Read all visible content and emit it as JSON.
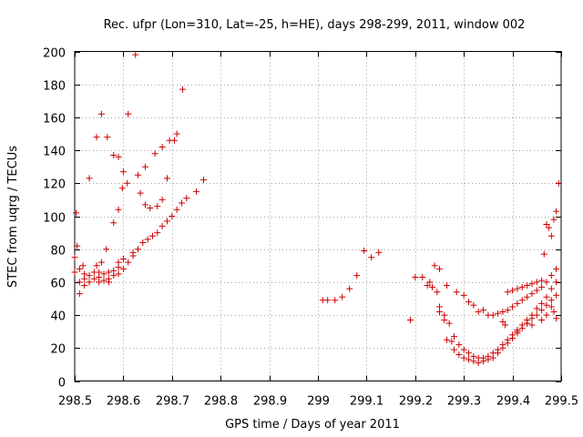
{
  "chart_data": {
    "type": "scatter",
    "title": "Rec. ufpr (Lon=310, Lat=-25, h=HE), days 298-299, 2011, window 002",
    "xlabel": "GPS time / Days of year 2011",
    "ylabel": "STEC from uqrg / TECUs",
    "xlim": [
      298.5,
      299.5
    ],
    "ylim": [
      0,
      200
    ],
    "xticks": [
      298.5,
      298.6,
      298.7,
      298.8,
      298.9,
      299,
      299.1,
      299.2,
      299.3,
      299.4,
      299.5
    ],
    "xtick_labels": [
      "298.5",
      "298.6",
      "298.7",
      "298.8",
      "298.9",
      "299",
      "299.1",
      "299.2",
      "299.3",
      "299.4",
      "299.5"
    ],
    "yticks": [
      0,
      20,
      40,
      60,
      80,
      100,
      120,
      140,
      160,
      180,
      200
    ],
    "ytick_labels": [
      "0",
      "20",
      "40",
      "60",
      "80",
      "100",
      "120",
      "140",
      "160",
      "180",
      "200"
    ],
    "grid": true,
    "marker": "plus",
    "color": "#cc0000",
    "series": [
      {
        "name": "STEC",
        "x": [
          298.5,
          298.5,
          298.51,
          298.51,
          298.51,
          298.52,
          298.52,
          298.53,
          298.53,
          298.54,
          298.54,
          298.55,
          298.55,
          298.55,
          298.56,
          298.56,
          298.57,
          298.57,
          298.57,
          298.58,
          298.58,
          298.59,
          298.59,
          298.59,
          298.6,
          298.6,
          298.61,
          298.62,
          298.62,
          298.63,
          298.64,
          298.65,
          298.66,
          298.67,
          298.68,
          298.69,
          298.7,
          298.71,
          298.72,
          298.73,
          298.75,
          298.765,
          298.503,
          298.53,
          298.545,
          298.555,
          298.567,
          298.58,
          298.59,
          298.6,
          298.61,
          298.625,
          298.635,
          298.645,
          298.655,
          298.67,
          298.68,
          298.69,
          298.705,
          298.505,
          298.517,
          298.52,
          298.545,
          298.555,
          298.565,
          298.58,
          298.59,
          298.598,
          298.608,
          298.63,
          298.645,
          298.665,
          298.68,
          298.695,
          298.71,
          298.722,
          299.01,
          299.02,
          299.035,
          299.05,
          299.065,
          299.08,
          299.095,
          299.11,
          299.125,
          299.19,
          299.2,
          299.215,
          299.225,
          299.23,
          299.235,
          299.245,
          299.25,
          299.26,
          299.265,
          299.275,
          299.28,
          299.29,
          299.3,
          299.31,
          299.32,
          299.33,
          299.34,
          299.35,
          299.36,
          299.37,
          299.38,
          299.39,
          299.4,
          299.41,
          299.42,
          299.43,
          299.44,
          299.45,
          299.46,
          299.47,
          299.48,
          299.49,
          299.25,
          299.26,
          299.27,
          299.28,
          299.29,
          299.3,
          299.31,
          299.32,
          299.33,
          299.34,
          299.35,
          299.36,
          299.37,
          299.38,
          299.39,
          299.4,
          299.41,
          299.42,
          299.43,
          299.44,
          299.45,
          299.46,
          299.47,
          299.48,
          299.49,
          299.285,
          299.3,
          299.31,
          299.32,
          299.33,
          299.34,
          299.35,
          299.36,
          299.37,
          299.38,
          299.39,
          299.4,
          299.41,
          299.42,
          299.43,
          299.44,
          299.45,
          299.46,
          299.47,
          299.48,
          299.49,
          299.39,
          299.4,
          299.41,
          299.42,
          299.43,
          299.44,
          299.45,
          299.46,
          299.465,
          299.47,
          299.475,
          299.48,
          299.485,
          299.49,
          299.495,
          299.24,
          299.25,
          299.265,
          299.38,
          299.385,
          299.41,
          299.43,
          299.44,
          299.46,
          299.47,
          299.48,
          299.485,
          299.49
        ],
        "y": [
          75,
          66,
          60,
          68,
          53,
          62,
          58,
          64,
          60,
          66,
          62,
          63,
          66,
          60,
          65,
          61,
          66,
          62,
          60,
          64,
          67,
          69,
          65,
          72,
          74,
          68,
          72,
          76,
          78,
          80,
          84,
          86,
          88,
          90,
          94,
          97,
          100,
          104,
          108,
          111,
          115,
          122,
          102,
          123,
          148,
          162,
          148,
          137,
          136,
          127,
          162,
          198,
          114,
          107,
          105,
          106,
          110,
          123,
          146,
          82,
          70,
          65,
          70,
          72,
          80,
          96,
          104,
          117,
          120,
          125,
          130,
          138,
          142,
          146,
          150,
          177,
          49,
          49,
          49,
          51,
          56,
          64,
          79,
          75,
          78,
          37,
          63,
          63,
          58,
          60,
          57,
          54,
          42,
          37,
          25,
          24,
          19,
          16,
          14,
          13,
          12,
          11,
          12,
          13,
          14,
          17,
          20,
          23,
          26,
          29,
          32,
          35,
          38,
          40,
          43,
          46,
          49,
          52,
          45,
          40,
          35,
          27,
          22,
          19,
          17,
          15,
          14,
          14,
          15,
          17,
          19,
          22,
          25,
          28,
          31,
          34,
          37,
          40,
          44,
          47,
          51,
          56,
          60,
          54,
          52,
          48,
          46,
          42,
          43,
          40,
          40,
          41,
          42,
          43,
          45,
          47,
          49,
          51,
          53,
          55,
          57,
          60,
          64,
          68,
          54,
          55,
          56,
          57,
          58,
          59,
          60,
          61,
          77,
          95,
          93,
          88,
          98,
          103,
          120,
          70,
          68,
          58,
          36,
          34,
          30,
          35,
          34,
          37,
          40,
          45,
          42,
          38
        ]
      }
    ]
  }
}
